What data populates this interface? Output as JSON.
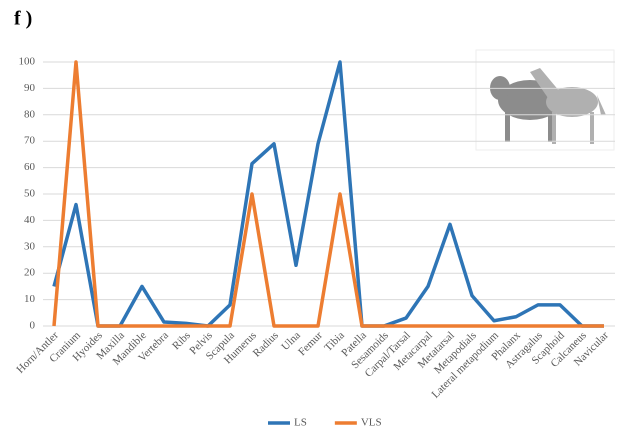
{
  "chart_data": {
    "type": "line",
    "title": "f )",
    "categories": [
      "Horn/Antler",
      "Cranium",
      "Hyoides",
      "Maxilla",
      "Mandible",
      "Vertebra",
      "Ribs",
      "Pelvis",
      "Scapula",
      "Humerus",
      "Radius",
      "Ulna",
      "Femur",
      "Tibia",
      "Patella",
      "Sesamoids",
      "Carpal/Tarsal",
      "Metacarpal",
      "Metatarsal",
      "Metapodials",
      "Lateral metapodium",
      "Phalanx",
      "Astragalus",
      "Scaphoid",
      "Calcaneus",
      "Navicular"
    ],
    "series": [
      {
        "name": "LS",
        "color": "#2e75b6",
        "values": [
          15,
          46,
          0,
          0,
          15,
          1.5,
          1,
          0,
          8,
          61.5,
          69,
          23,
          69,
          100,
          0,
          0,
          3,
          15,
          38.5,
          11.5,
          2,
          3.5,
          8,
          8,
          0,
          0
        ]
      },
      {
        "name": "VLS",
        "color": "#ed7d31",
        "values": [
          0,
          100,
          0,
          0,
          0,
          0,
          0,
          0,
          0,
          50,
          0,
          0,
          0,
          50,
          0,
          0,
          0,
          0,
          0,
          0,
          0,
          0,
          0,
          0,
          0,
          0
        ]
      }
    ],
    "ylim": [
      0,
      100
    ],
    "yticks": [
      0,
      10,
      20,
      30,
      40,
      50,
      60,
      70,
      80,
      90,
      100
    ],
    "grid": true,
    "legend": "bottom"
  }
}
